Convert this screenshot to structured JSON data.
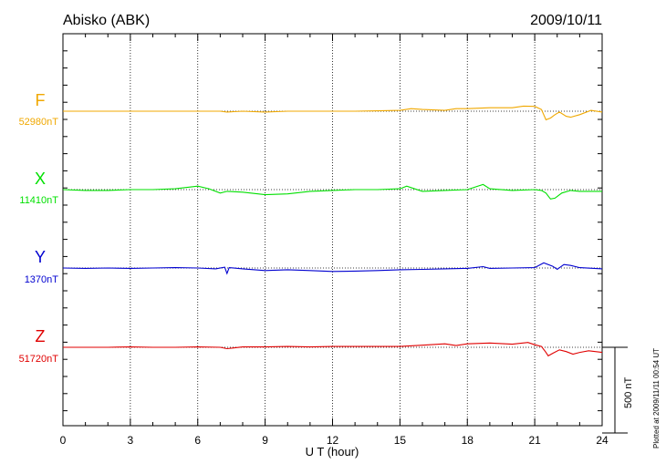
{
  "header": {
    "station": "Abisko (ABK)",
    "date": "2009/10/11"
  },
  "footer": {
    "plotted": "Plotted at 2009/11/11 00:54 UT"
  },
  "chart_data": {
    "type": "line",
    "xlabel": "U T (hour)",
    "xlim": [
      0,
      24
    ],
    "x_ticks": [
      "0",
      "3",
      "6",
      "9",
      "12",
      "15",
      "18",
      "21",
      "24"
    ],
    "grid": "vertical dotted at 3-hour ticks",
    "scale_bar": {
      "value": 500,
      "label": "500 nT"
    },
    "colors": {
      "F": "#f0a800",
      "X": "#00e000",
      "Y": "#0000d0",
      "Z": "#e00000"
    },
    "series": [
      {
        "name": "F",
        "baseline_label": "52980nT",
        "baseline": 52980,
        "x": [
          0,
          1,
          2,
          3,
          4,
          5,
          6,
          7,
          7.3,
          8,
          9,
          10,
          11,
          12,
          13,
          14,
          15,
          15.5,
          16,
          17,
          17.5,
          18,
          19,
          20,
          20.5,
          21,
          21.3,
          21.5,
          21.7,
          21.9,
          22.1,
          22.4,
          22.6,
          23,
          23.5,
          24
        ],
        "y": [
          52980,
          52980,
          52980,
          52980,
          52980,
          52980,
          52980,
          52980,
          52975,
          52980,
          52975,
          52980,
          52980,
          52980,
          52980,
          52982,
          52985,
          52995,
          52990,
          52985,
          52995,
          52995,
          53000,
          53000,
          53010,
          53008,
          52990,
          52930,
          52940,
          52960,
          52975,
          52950,
          52945,
          52960,
          52985,
          52975
        ]
      },
      {
        "name": "X",
        "baseline_label": "11410nT",
        "baseline": 11410,
        "x": [
          0,
          1,
          2,
          3,
          4,
          5,
          6,
          6.5,
          7,
          7.3,
          8,
          9,
          10,
          11,
          12,
          13,
          14,
          15,
          15.3,
          16,
          17,
          18,
          18.7,
          19,
          20,
          21,
          21.3,
          21.5,
          21.7,
          21.9,
          22.2,
          22.6,
          23,
          24
        ],
        "y": [
          11410,
          11405,
          11405,
          11410,
          11410,
          11415,
          11430,
          11415,
          11390,
          11400,
          11395,
          11380,
          11385,
          11400,
          11405,
          11410,
          11410,
          11415,
          11430,
          11400,
          11405,
          11410,
          11440,
          11415,
          11405,
          11410,
          11405,
          11390,
          11355,
          11360,
          11390,
          11405,
          11400,
          11400
        ]
      },
      {
        "name": "Y",
        "baseline_label": "1370nT",
        "baseline": 1370,
        "x": [
          0,
          1,
          2,
          3,
          4,
          5,
          6,
          6.8,
          7.2,
          7.3,
          7.4,
          8,
          9,
          10,
          11,
          12,
          13,
          14,
          15,
          16,
          17,
          18,
          18.7,
          19,
          20,
          21,
          21.4,
          21.8,
          22,
          22.3,
          22.6,
          23,
          24
        ],
        "y": [
          1370,
          1368,
          1370,
          1368,
          1370,
          1372,
          1370,
          1365,
          1375,
          1338,
          1372,
          1365,
          1355,
          1360,
          1355,
          1350,
          1352,
          1355,
          1360,
          1362,
          1365,
          1368,
          1378,
          1368,
          1370,
          1372,
          1400,
          1380,
          1362,
          1390,
          1385,
          1372,
          1365
        ]
      },
      {
        "name": "Z",
        "baseline_label": "51720nT",
        "baseline": 51720,
        "x": [
          0,
          1,
          2,
          3,
          4,
          5,
          6,
          7,
          7.3,
          8,
          9,
          10,
          11,
          12,
          13,
          14,
          15,
          16,
          17,
          17.5,
          18,
          19,
          20,
          20.7,
          21,
          21.3,
          21.5,
          21.6,
          21.8,
          22.1,
          22.4,
          22.7,
          23,
          23.4,
          24
        ],
        "y": [
          51720,
          51720,
          51720,
          51722,
          51720,
          51720,
          51722,
          51720,
          51712,
          51722,
          51722,
          51725,
          51722,
          51725,
          51725,
          51725,
          51725,
          51732,
          51740,
          51730,
          51740,
          51745,
          51738,
          51748,
          51735,
          51725,
          51690,
          51670,
          51685,
          51705,
          51695,
          51680,
          51690,
          51700,
          51690
        ]
      }
    ]
  }
}
